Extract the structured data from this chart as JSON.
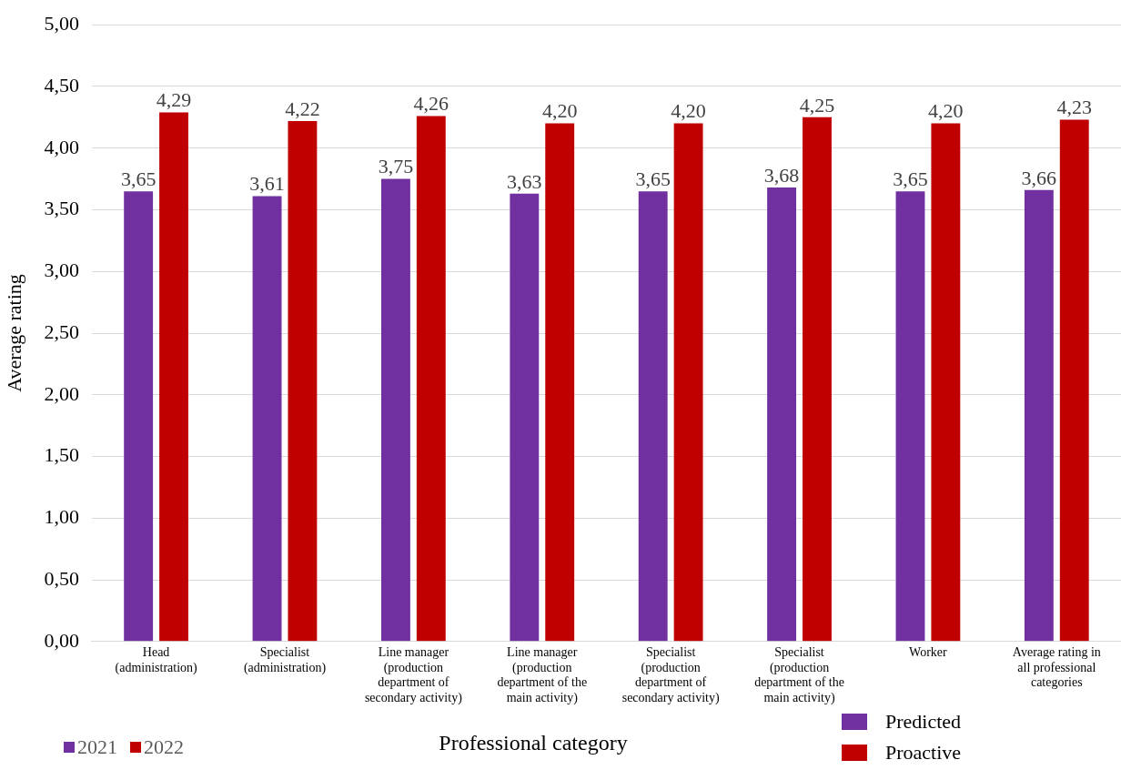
{
  "chart_data": {
    "type": "bar",
    "xlabel": "Professional category",
    "ylabel": "Average rating",
    "categories": [
      "Head (administration)",
      "Specialist (administration)",
      "Line manager (production department of secondary activity)",
      "Line manager (production department of the main activity)",
      "Specialist (production department of secondary activity)",
      "Specialist (production department of the main activity)",
      "Worker",
      "Average rating in all professional categories"
    ],
    "series": [
      {
        "name": "2021",
        "color": "#7030a0",
        "values": [
          3.65,
          3.61,
          3.75,
          3.63,
          3.65,
          3.68,
          3.65,
          3.66
        ],
        "value_labels": [
          "3,65",
          "3,61",
          "3,75",
          "3,63",
          "3,65",
          "3,68",
          "3,65",
          "3,66"
        ]
      },
      {
        "name": "2022",
        "color": "#c00000",
        "values": [
          4.29,
          4.22,
          4.26,
          4.2,
          4.2,
          4.25,
          4.2,
          4.23
        ],
        "value_labels": [
          "4,29",
          "4,22",
          "4,26",
          "4,20",
          "4,20",
          "4,25",
          "4,20",
          "4,23"
        ]
      }
    ],
    "ylim": [
      0,
      5
    ],
    "yticks": [
      {
        "value": 0,
        "label": "0,00"
      },
      {
        "value": 0.5,
        "label": "0,50"
      },
      {
        "value": 1,
        "label": "1,00"
      },
      {
        "value": 1.5,
        "label": "1,50"
      },
      {
        "value": 2,
        "label": "2,00"
      },
      {
        "value": 2.5,
        "label": "2,50"
      },
      {
        "value": 3,
        "label": "3,00"
      },
      {
        "value": 3.5,
        "label": "3,50"
      },
      {
        "value": 4,
        "label": "4,00"
      },
      {
        "value": 4.5,
        "label": "4,50"
      },
      {
        "value": 5,
        "label": "5,00"
      }
    ],
    "grid": "y",
    "legend": "bottom left",
    "annotations": [
      "Predicted",
      "Proactive"
    ]
  }
}
